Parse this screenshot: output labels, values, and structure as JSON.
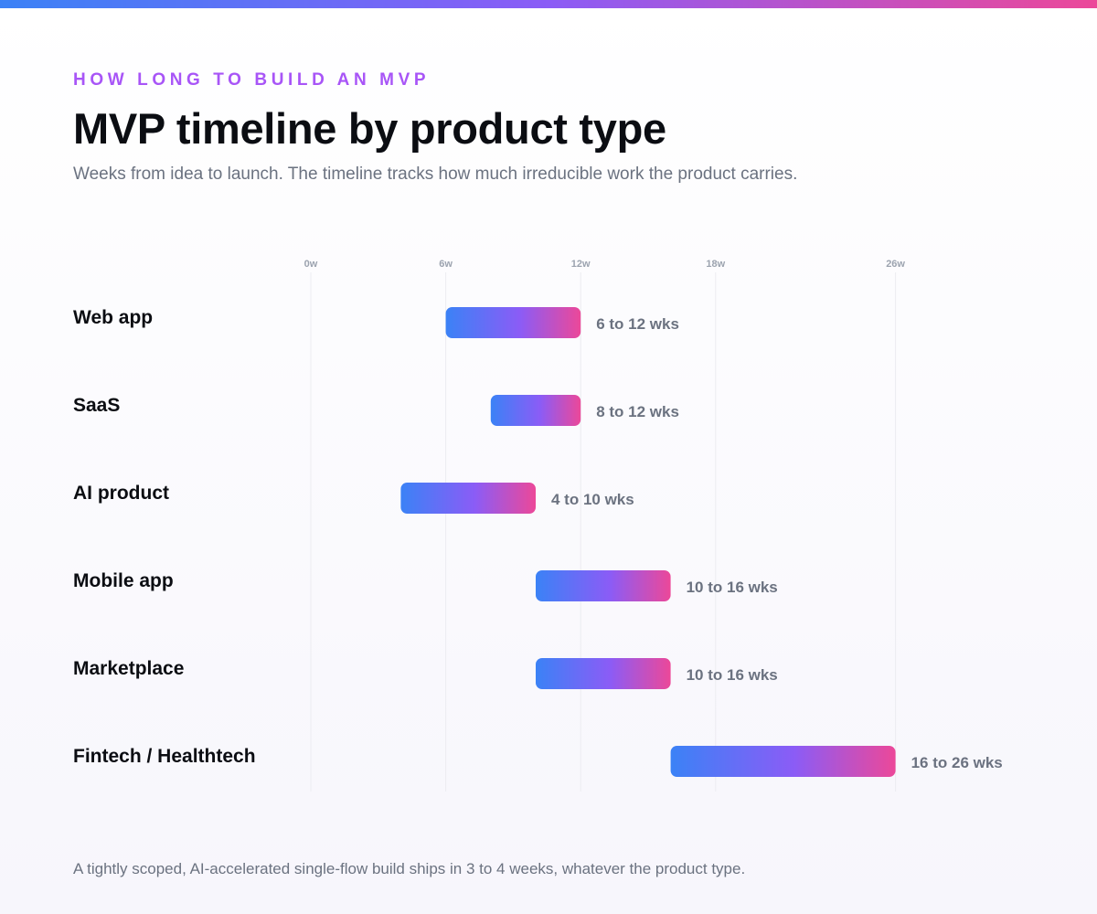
{
  "header": {
    "eyebrow": "HOW LONG TO BUILD AN MVP",
    "title": "MVP timeline by product type",
    "subtitle": "Weeks from idea to launch. The timeline tracks how much irreducible work the product carries."
  },
  "footnote": "A tightly scoped, AI-accelerated single-flow build ships in 3 to 4 weeks, whatever the product type.",
  "colors": {
    "gradient_start": "#3b82f6",
    "gradient_mid": "#8b5cf6",
    "gradient_end": "#ec4899",
    "gridline": "#ececf1"
  },
  "chart_data": {
    "type": "bar",
    "orientation": "horizontal-range",
    "x_ticks": [
      {
        "value": 0,
        "label": "0w"
      },
      {
        "value": 6,
        "label": "6w"
      },
      {
        "value": 12,
        "label": "12w"
      },
      {
        "value": 18,
        "label": "18w"
      },
      {
        "value": 26,
        "label": "26w"
      }
    ],
    "xlim": [
      0,
      26
    ],
    "grid": true,
    "categories": [
      "Web app",
      "SaaS",
      "AI product",
      "Mobile app",
      "Marketplace",
      "Fintech / Healthtech"
    ],
    "ranges": [
      {
        "start": 6,
        "end": 12,
        "label": "6 to 12 wks"
      },
      {
        "start": 8,
        "end": 12,
        "label": "8 to 12 wks"
      },
      {
        "start": 4,
        "end": 10,
        "label": "4 to 10 wks"
      },
      {
        "start": 10,
        "end": 16,
        "label": "10 to 16 wks"
      },
      {
        "start": 10,
        "end": 16,
        "label": "10 to 16 wks"
      },
      {
        "start": 16,
        "end": 26,
        "label": "16 to 26 wks"
      }
    ]
  }
}
